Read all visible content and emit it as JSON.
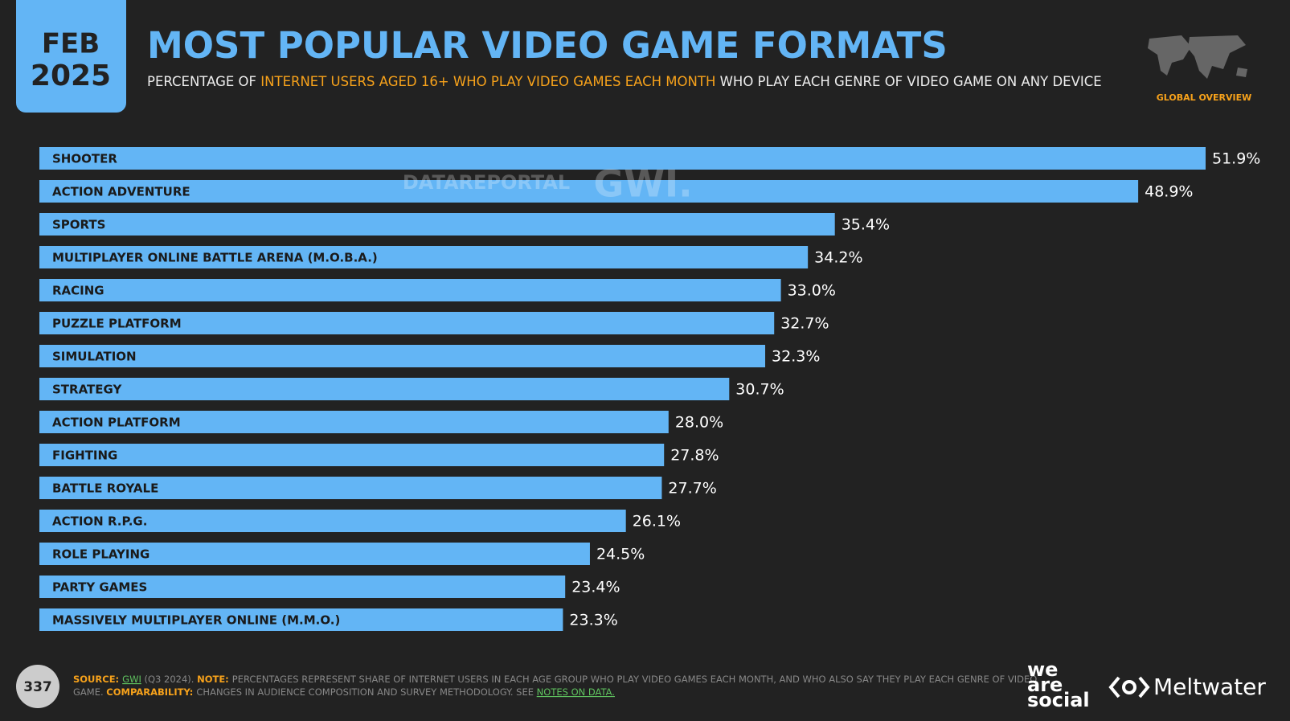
{
  "header": {
    "month": "FEB",
    "year": "2025",
    "title": "MOST POPULAR VIDEO GAME FORMATS",
    "subtitle_1": "PERCENTAGE OF ",
    "subtitle_2": "INTERNET USERS AGED 16+ WHO PLAY VIDEO GAMES EACH MONTH",
    "subtitle_3": " WHO PLAY EACH GENRE OF VIDEO GAME ON ANY DEVICE",
    "badge": "GLOBAL OVERVIEW"
  },
  "watermarks": [
    "DATAREPORTAL",
    "GWI."
  ],
  "chart_data": {
    "type": "bar",
    "orientation": "horizontal",
    "color": "#63b5f5",
    "categories": [
      "SHOOTER",
      "ACTION ADVENTURE",
      "SPORTS",
      "MULTIPLAYER ONLINE BATTLE ARENA (M.O.B.A.)",
      "RACING",
      "PUZZLE PLATFORM",
      "SIMULATION",
      "STRATEGY",
      "ACTION PLATFORM",
      "FIGHTING",
      "BATTLE ROYALE",
      "ACTION R.P.G.",
      "ROLE PLAYING",
      "PARTY GAMES",
      "MASSIVELY MULTIPLAYER ONLINE (M.M.O.)"
    ],
    "values": [
      51.9,
      48.9,
      35.4,
      34.2,
      33.0,
      32.7,
      32.3,
      30.7,
      28.0,
      27.8,
      27.7,
      26.1,
      24.5,
      23.4,
      23.3
    ],
    "value_labels": [
      "51.9%",
      "48.9%",
      "35.4%",
      "34.2%",
      "33.0%",
      "32.7%",
      "32.3%",
      "30.7%",
      "28.0%",
      "27.8%",
      "27.7%",
      "26.1%",
      "24.5%",
      "23.4%",
      "23.3%"
    ]
  },
  "footer": {
    "page": "337",
    "line_1": [
      {
        "text": "SOURCE: ",
        "style": "key"
      },
      {
        "text": "GWI",
        "style": "link"
      },
      {
        "text": " (Q3 2024). ",
        "style": "plain"
      },
      {
        "text": "NOTE: ",
        "style": "key"
      },
      {
        "text": "PERCENTAGES REPRESENT SHARE OF INTERNET USERS IN EACH AGE GROUP WHO PLAY VIDEO GAMES EACH MONTH, AND WHO ALSO SAY THEY PLAY EACH GENRE OF VIDEO",
        "style": "plain"
      }
    ],
    "line_2": [
      {
        "text": "GAME. ",
        "style": "plain"
      },
      {
        "text": "COMPARABILITY: ",
        "style": "key"
      },
      {
        "text": "CHANGES IN AUDIENCE COMPOSITION AND SURVEY METHODOLOGY. SEE ",
        "style": "plain"
      },
      {
        "text": "NOTES ON DATA.",
        "style": "link"
      }
    ],
    "logo_1": [
      "we",
      "are",
      "social"
    ],
    "logo_2": "Meltwater"
  }
}
